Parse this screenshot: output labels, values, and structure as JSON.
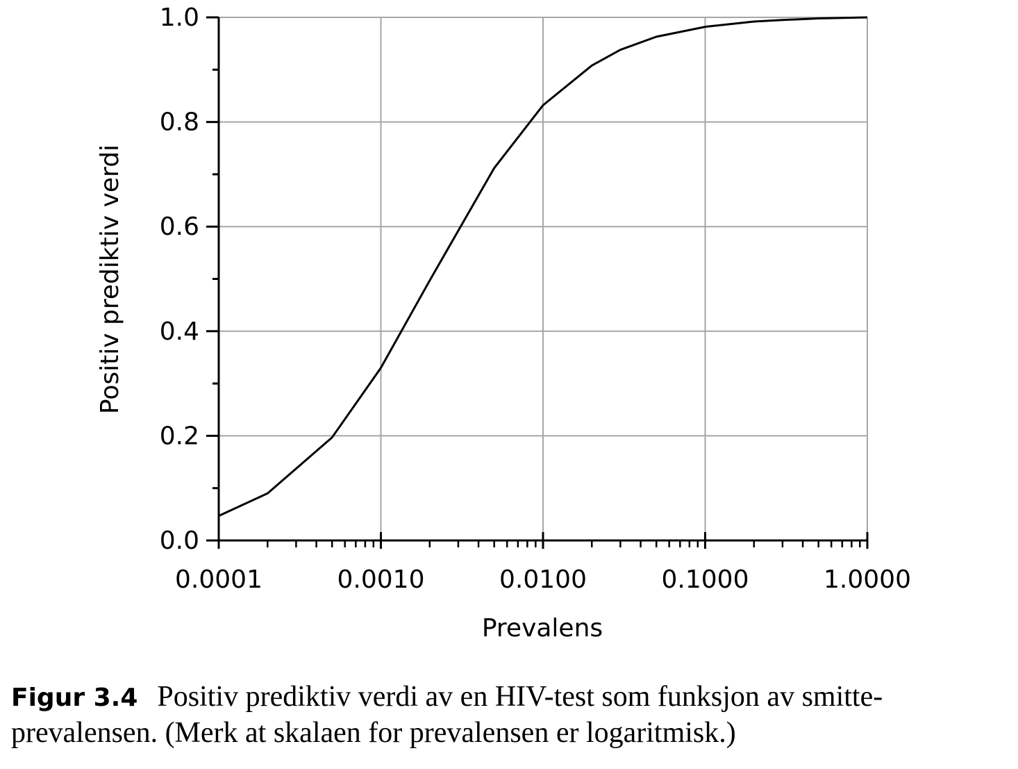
{
  "chart_data": {
    "type": "line",
    "title": "",
    "xlabel": "Prevalens",
    "ylabel": "Positiv prediktiv verdi",
    "x_scale": "log",
    "xlim": [
      0.0001,
      1.0
    ],
    "ylim": [
      0.0,
      1.0
    ],
    "grid": true,
    "x_tick_values": [
      0.0001,
      0.001,
      0.01,
      0.1,
      1.0
    ],
    "x_tick_labels": [
      "0.0001",
      "0.0010",
      "0.0100",
      "0.1000",
      "1.0000"
    ],
    "y_tick_values": [
      0.0,
      0.2,
      0.4,
      0.6,
      0.8,
      1.0
    ],
    "y_tick_labels": [
      "0.0",
      "0.2",
      "0.4",
      "0.6",
      "0.8",
      "1.0"
    ],
    "series": [
      {
        "name": "Positiv prediktiv verdi",
        "x": [
          0.0001,
          0.0002,
          0.0005,
          0.001,
          0.002,
          0.005,
          0.01,
          0.02,
          0.03,
          0.05,
          0.1,
          0.2,
          0.3,
          0.5,
          1.0
        ],
        "y": [
          0.047,
          0.09,
          0.197,
          0.33,
          0.497,
          0.712,
          0.832,
          0.908,
          0.938,
          0.963,
          0.982,
          0.992,
          0.995,
          0.998,
          1.0
        ]
      }
    ]
  },
  "caption": {
    "label": "Figur 3.4",
    "line1": "Positiv prediktiv verdi av en HIV-test som funksjon av smitte-",
    "line2": "prevalensen. (Merk at skalaen for prevalensen er logaritmisk.)"
  },
  "colors": {
    "line": "#000000",
    "grid": "#a6a6a6",
    "axis": "#000000"
  }
}
